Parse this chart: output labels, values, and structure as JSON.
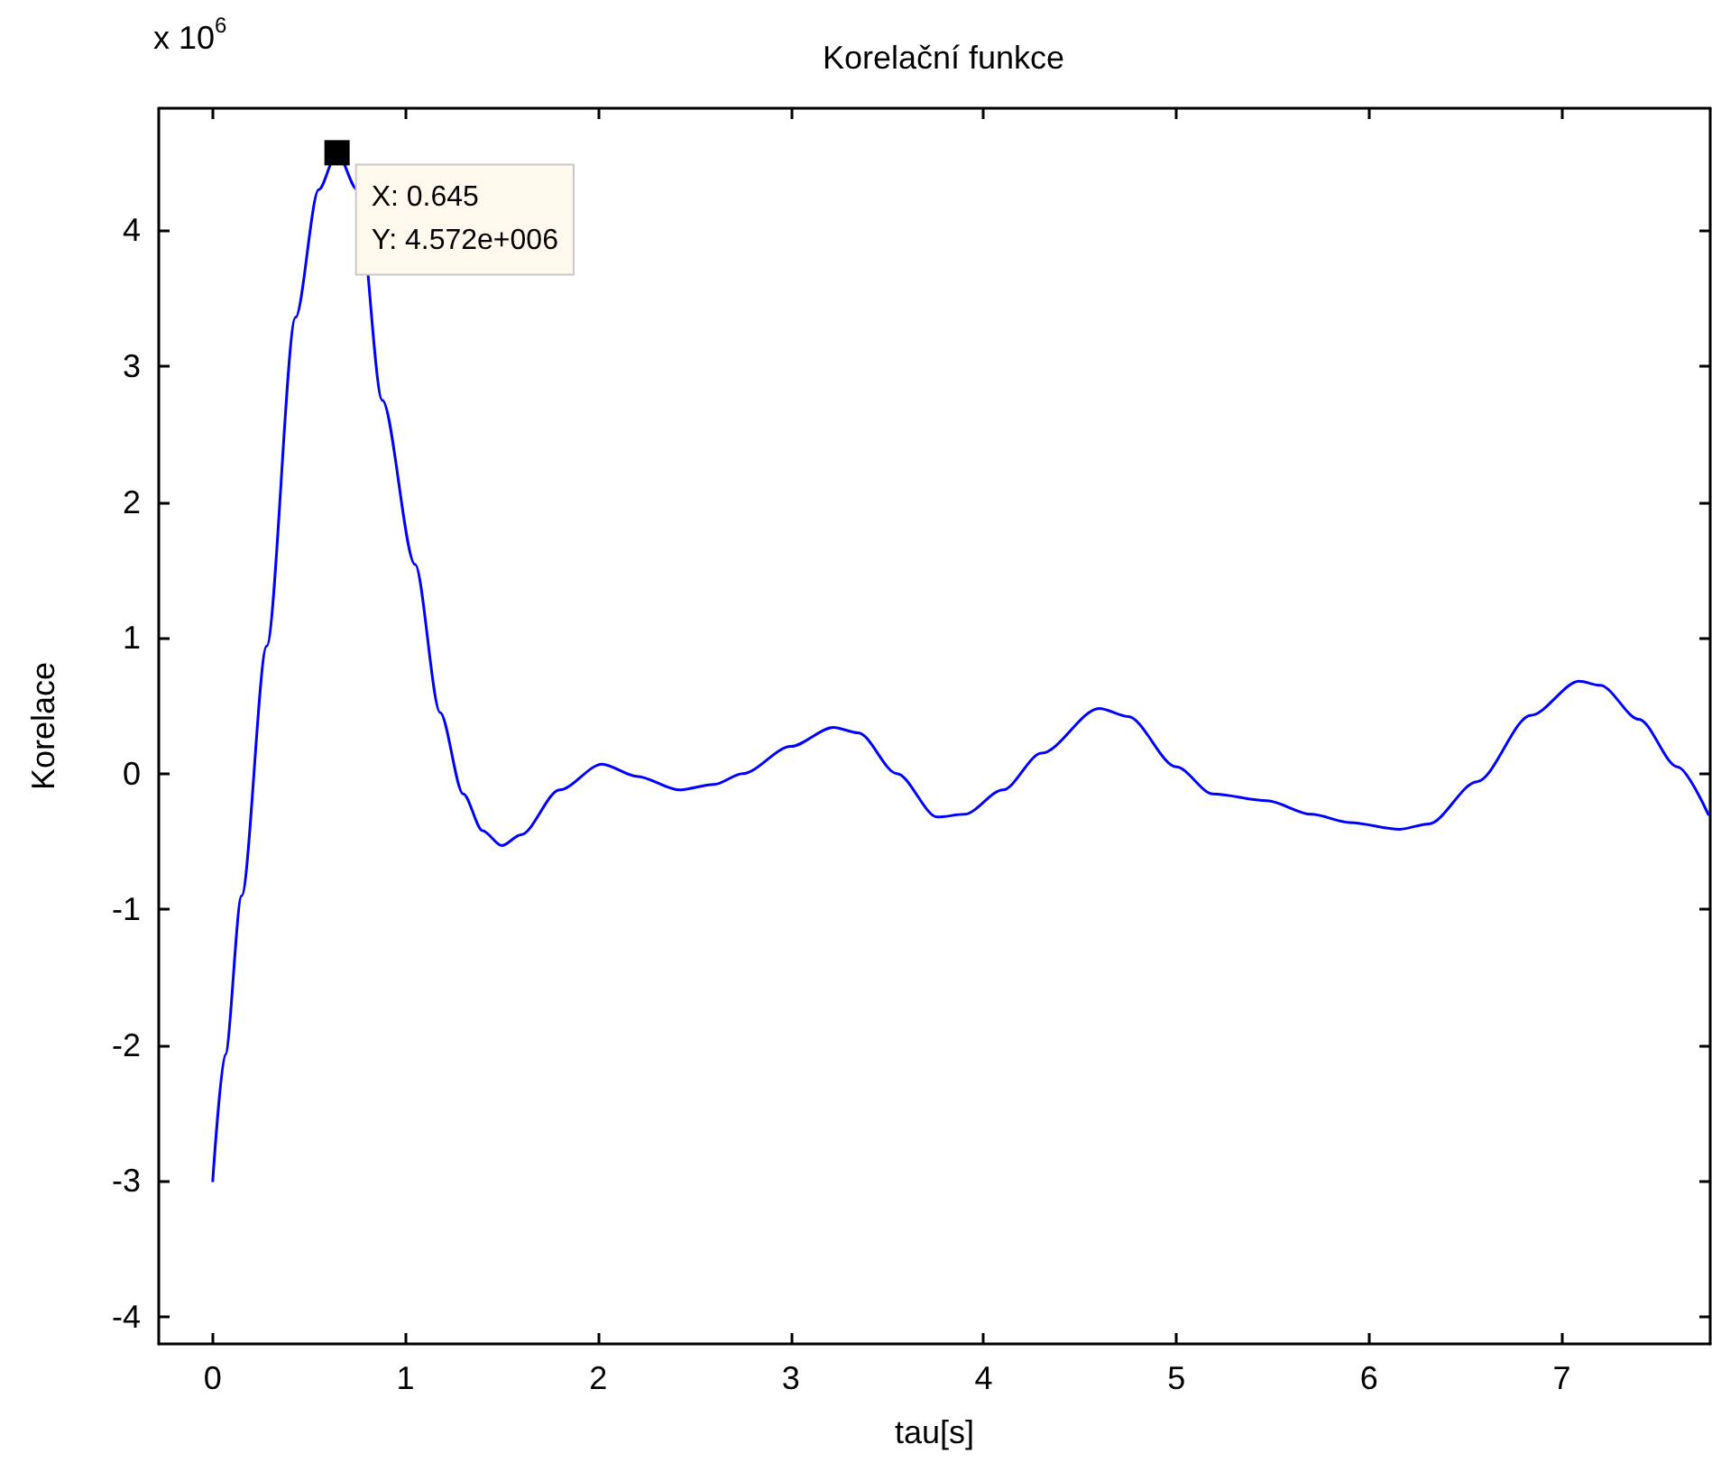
{
  "chart_data": {
    "type": "line",
    "title": "Korelační funkce",
    "xlabel": "tau[s]",
    "ylabel": "Korelace",
    "annotations": [
      "x 10$^{6}$",
      {
        "text": "X: 0.645\nY: 4.572e+006",
        "x": 0.645,
        "y": 4.572
      }
    ],
    "series": [
      {
        "color": "#0000ff",
        "x": [
          0,
          0.065,
          0.15,
          0.28,
          0.43,
          0.55,
          0.645,
          0.75,
          0.88,
          1.05,
          1.18,
          1.3,
          1.4,
          1.5,
          1.6,
          1.8,
          2.02,
          2.2,
          2.42,
          2.6,
          2.75,
          3.0,
          3.22,
          3.35,
          3.55,
          3.76,
          3.9,
          4.1,
          4.3,
          4.6,
          4.75,
          5.0,
          5.19,
          5.47,
          5.7,
          5.9,
          6.16,
          6.31,
          6.56,
          6.84,
          7.09,
          7.2,
          7.4,
          7.6,
          7.76
        ],
        "values": [
          -3.0,
          -2.07,
          -0.9,
          0.94,
          3.36,
          4.3,
          4.572,
          4.3,
          2.75,
          1.54,
          0.45,
          -0.15,
          -0.42,
          -0.53,
          -0.45,
          -0.12,
          0.07,
          -0.02,
          -0.12,
          -0.08,
          0.0,
          0.2,
          0.34,
          0.3,
          0.0,
          -0.32,
          -0.3,
          -0.12,
          0.15,
          0.48,
          0.42,
          0.05,
          -0.15,
          -0.2,
          -0.3,
          -0.36,
          -0.41,
          -0.37,
          -0.06,
          0.43,
          0.68,
          0.65,
          0.4,
          0.05,
          -0.3
        ]
      }
    ],
    "xlim": [
      -0.28,
      7.77
    ],
    "xticks": [
      0,
      1,
      2,
      3,
      4,
      5,
      6,
      7
    ],
    "ylim": [
      -4.2,
      4.9
    ],
    "yticks": [
      -4,
      -3,
      -2,
      -1,
      0,
      1,
      2,
      3,
      4
    ],
    "grid": false,
    "marker": "none",
    "line_style": "solid"
  }
}
